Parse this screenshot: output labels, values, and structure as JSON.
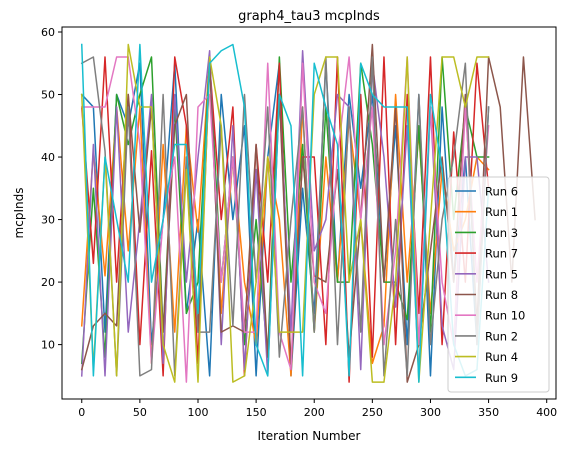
{
  "chart_data": {
    "type": "line",
    "title": "graph4_tau3 mcpInds",
    "xlabel": "Iteration Number",
    "ylabel": "mcpInds",
    "xlim": [
      -17,
      408
    ],
    "ylim": [
      1.3,
      60.8
    ],
    "xticks": [
      0,
      50,
      100,
      150,
      200,
      250,
      300,
      350,
      400
    ],
    "yticks": [
      10,
      20,
      30,
      40,
      50,
      60
    ],
    "xtick_labels": [
      "0",
      "50",
      "100",
      "150",
      "200",
      "250",
      "300",
      "350",
      "400"
    ],
    "ytick_labels": [
      "10",
      "20",
      "30",
      "40",
      "50",
      "60"
    ],
    "grid": false,
    "legend_position": "lower right",
    "series": [
      {
        "name": "Run 6",
        "color": "#1f77b4",
        "x": [
          0,
          10,
          20,
          30,
          40,
          50,
          60,
          70,
          80,
          90,
          100,
          110,
          120,
          130,
          140,
          150,
          160,
          170,
          180,
          190,
          200,
          210,
          220,
          230,
          240,
          250,
          260,
          270,
          280,
          290,
          300,
          310,
          320,
          330,
          340,
          350
        ],
        "y": [
          50,
          48,
          12,
          50,
          45,
          55,
          10,
          30,
          55,
          15,
          30,
          5,
          50,
          30,
          45,
          5,
          40,
          55,
          5,
          35,
          15,
          55,
          20,
          50,
          35,
          50,
          20,
          45,
          10,
          50,
          5,
          48,
          20,
          40,
          10,
          48
        ]
      },
      {
        "name": "Run 1",
        "color": "#ff7f0e",
        "x": [
          0,
          10,
          20,
          30,
          40,
          50,
          60,
          70,
          80,
          90,
          100,
          110,
          120,
          130,
          140,
          150,
          160,
          170,
          180,
          190,
          200,
          210,
          220,
          230,
          240,
          250,
          260,
          270,
          280,
          290,
          300,
          310,
          320,
          330,
          340,
          350
        ],
        "y": [
          13,
          41,
          21,
          48,
          25,
          48,
          7,
          42,
          12,
          45,
          28,
          56,
          15,
          40,
          20,
          10,
          40,
          30,
          5,
          48,
          12,
          40,
          20,
          46,
          30,
          7,
          13,
          50,
          20,
          44,
          15,
          38,
          25,
          30,
          40,
          38
        ]
      },
      {
        "name": "Run 3",
        "color": "#2ca02c",
        "x": [
          0,
          10,
          20,
          30,
          40,
          50,
          60,
          70,
          80,
          90,
          100,
          110,
          120,
          130,
          140,
          150,
          160,
          170,
          180,
          190,
          200,
          210,
          220,
          230,
          240,
          250,
          260,
          270,
          280,
          290,
          300,
          310,
          320,
          330,
          340,
          350
        ],
        "y": [
          7,
          35,
          8,
          50,
          42,
          50,
          56,
          12,
          48,
          15,
          20,
          56,
          20,
          40,
          10,
          30,
          8,
          56,
          20,
          42,
          12,
          48,
          20,
          20,
          55,
          42,
          20,
          20,
          14,
          45,
          12,
          56,
          30,
          48,
          40,
          40
        ]
      },
      {
        "name": "Run 7",
        "color": "#d62728",
        "x": [
          0,
          10,
          20,
          30,
          40,
          50,
          60,
          70,
          80,
          90,
          100,
          110,
          120,
          130,
          140,
          150,
          160,
          170,
          180,
          190,
          200,
          210,
          220,
          230,
          240,
          250,
          260,
          270,
          280,
          290,
          300,
          310,
          320,
          330,
          340,
          350
        ],
        "y": [
          48,
          23,
          56,
          20,
          50,
          10,
          41,
          5,
          56,
          45,
          7,
          55,
          30,
          48,
          5,
          42,
          20,
          55,
          6,
          40,
          40,
          10,
          56,
          4,
          50,
          8,
          56,
          10,
          50,
          15,
          56,
          10,
          44,
          20,
          55,
          35
        ]
      },
      {
        "name": "Run 5",
        "color": "#9467bd",
        "x": [
          0,
          10,
          20,
          30,
          40,
          50,
          60,
          70,
          80,
          90,
          100,
          110,
          120,
          130,
          140,
          150,
          160,
          170,
          180,
          190,
          200,
          210,
          220,
          230,
          240,
          250,
          260,
          270,
          280,
          290,
          300,
          310,
          320,
          330,
          340,
          350
        ],
        "y": [
          5,
          42,
          5,
          48,
          12,
          30,
          50,
          7,
          50,
          20,
          40,
          57,
          10,
          45,
          6,
          38,
          5,
          50,
          12,
          57,
          25,
          30,
          50,
          48,
          6,
          55,
          40,
          16,
          45,
          5,
          48,
          13,
          6,
          40,
          40,
          20
        ]
      },
      {
        "name": "Run 8",
        "color": "#8c564b",
        "x": [
          0,
          10,
          20,
          30,
          40,
          50,
          60,
          70,
          80,
          90,
          100,
          110,
          120,
          130,
          140,
          150,
          160,
          170,
          180,
          190,
          200,
          210,
          220,
          230,
          240,
          250,
          260,
          270,
          280,
          290,
          300,
          310,
          320,
          330,
          340,
          350,
          360,
          370,
          380,
          390
        ],
        "y": [
          6,
          13,
          15,
          13,
          50,
          28,
          48,
          12,
          45,
          50,
          12,
          55,
          12,
          13,
          12,
          42,
          8,
          50,
          6,
          40,
          21,
          20,
          38,
          8,
          30,
          58,
          20,
          48,
          4,
          10,
          25,
          40,
          20,
          50,
          13,
          56,
          48,
          20,
          56,
          30
        ]
      },
      {
        "name": "Run 10",
        "color": "#e377c2",
        "x": [
          0,
          10,
          20,
          30,
          40,
          50,
          60,
          70,
          80,
          90,
          100,
          110,
          120,
          130,
          140,
          150,
          160,
          170,
          180,
          190,
          200,
          210,
          220,
          230,
          240,
          250,
          260,
          270,
          280,
          290,
          300,
          310,
          320,
          330,
          340,
          350
        ],
        "y": [
          48,
          48,
          48,
          56,
          56,
          42,
          7,
          30,
          40,
          4,
          48,
          50,
          20,
          40,
          12,
          12,
          55,
          12,
          6,
          55,
          20,
          15,
          40,
          56,
          30,
          48,
          10,
          25,
          56,
          10,
          48,
          20,
          10,
          48,
          20,
          45
        ]
      },
      {
        "name": "Run 2",
        "color": "#7f7f7f",
        "x": [
          0,
          10,
          20,
          30,
          40,
          50,
          60,
          70,
          80,
          90,
          100,
          110,
          120,
          130,
          140,
          150,
          160,
          170,
          180,
          190,
          200,
          210,
          220,
          230,
          240,
          250,
          260,
          270,
          280,
          290,
          300,
          310,
          320,
          330,
          340,
          350
        ],
        "y": [
          55,
          56,
          41,
          5,
          48,
          5,
          6,
          50,
          5,
          40,
          12,
          12,
          45,
          13,
          50,
          20,
          48,
          8,
          30,
          48,
          12,
          56,
          10,
          48,
          12,
          56,
          5,
          30,
          5,
          50,
          10,
          30,
          40,
          55,
          10,
          48
        ]
      },
      {
        "name": "Run 4",
        "color": "#bcbd22",
        "x": [
          0,
          10,
          20,
          30,
          40,
          50,
          60,
          70,
          80,
          90,
          100,
          110,
          120,
          130,
          140,
          150,
          160,
          170,
          180,
          190,
          200,
          210,
          220,
          230,
          240,
          250,
          260,
          270,
          280,
          290,
          300,
          310,
          320,
          330,
          340,
          350
        ],
        "y": [
          50,
          6,
          40,
          5,
          58,
          48,
          48,
          10,
          4,
          38,
          4,
          56,
          45,
          4,
          5,
          20,
          40,
          12,
          12,
          12,
          50,
          56,
          56,
          20,
          30,
          4,
          4,
          20,
          56,
          4,
          30,
          56,
          56,
          48,
          56,
          56
        ]
      },
      {
        "name": "Run 9",
        "color": "#17becf",
        "x": [
          0,
          10,
          20,
          30,
          40,
          50,
          60,
          70,
          80,
          90,
          100,
          110,
          120,
          130,
          140,
          150,
          160,
          170,
          180,
          190,
          200,
          210,
          220,
          230,
          240,
          250,
          260,
          270,
          280,
          290,
          300,
          310,
          320,
          330,
          340,
          350
        ],
        "y": [
          58,
          5,
          40,
          30,
          20,
          58,
          20,
          30,
          42,
          42,
          15,
          55,
          57,
          58,
          48,
          10,
          5,
          50,
          45,
          5,
          55,
          48,
          42,
          5,
          55,
          50,
          48,
          48,
          48,
          4,
          50,
          38,
          10,
          5,
          6,
          35
        ]
      }
    ]
  }
}
